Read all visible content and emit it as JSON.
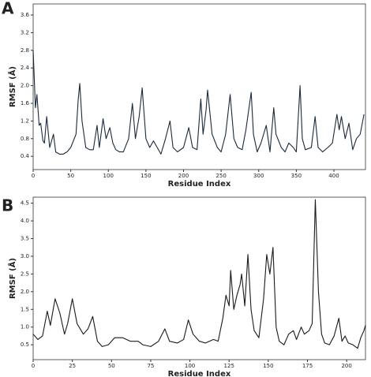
{
  "chart_data": [
    {
      "type": "line",
      "panel": "A",
      "xlabel": "Residue Index",
      "ylabel": "RMSF (Å)",
      "xlim": [
        0,
        442
      ],
      "ylim": [
        0.1,
        3.85
      ],
      "xticks": [
        0,
        50,
        100,
        150,
        200,
        250,
        300,
        350,
        400
      ],
      "yticks": [
        0.4,
        0.8,
        1.2,
        1.6,
        {
          "value": 2,
          "label": "2.0"
        },
        2.4,
        2.8,
        3.2,
        3.6
      ],
      "x": [
        0,
        3,
        5,
        8,
        10,
        13,
        15,
        18,
        22,
        27,
        30,
        35,
        40,
        45,
        50,
        57,
        60,
        62,
        65,
        70,
        75,
        80,
        85,
        88,
        93,
        97,
        102,
        106,
        110,
        115,
        120,
        127,
        132,
        136,
        141,
        145,
        150,
        155,
        160,
        165,
        170,
        176,
        182,
        186,
        192,
        200,
        207,
        212,
        218,
        223,
        226,
        230,
        232,
        238,
        245,
        250,
        256,
        262,
        267,
        272,
        278,
        283,
        290,
        293,
        298,
        303,
        310,
        315,
        320,
        323,
        330,
        335,
        340,
        346,
        350,
        355,
        358,
        362,
        370,
        375,
        379,
        385,
        392,
        398,
        404,
        407,
        410,
        415,
        420,
        425,
        430,
        435,
        440
      ],
      "series": [
        {
          "name": "RMSF",
          "color": "#1a2a3a",
          "values": [
            2.8,
            1.5,
            1.8,
            1.1,
            1.15,
            0.75,
            0.7,
            1.3,
            0.6,
            0.9,
            0.5,
            0.45,
            0.45,
            0.5,
            0.6,
            0.9,
            1.7,
            2.05,
            1.2,
            0.6,
            0.55,
            0.55,
            1.1,
            0.6,
            1.25,
            0.8,
            1.05,
            0.7,
            0.55,
            0.5,
            0.5,
            0.8,
            1.6,
            0.8,
            1.3,
            1.95,
            0.8,
            0.6,
            0.75,
            0.6,
            0.45,
            0.8,
            1.2,
            0.6,
            0.5,
            0.6,
            1.05,
            0.6,
            0.55,
            1.7,
            0.9,
            1.45,
            1.9,
            0.9,
            0.6,
            0.5,
            0.9,
            1.8,
            0.8,
            0.6,
            0.55,
            1.0,
            1.85,
            0.9,
            0.5,
            0.7,
            1.1,
            0.5,
            1.5,
            0.9,
            0.6,
            0.5,
            0.7,
            0.6,
            0.5,
            2.0,
            0.8,
            0.55,
            0.6,
            1.3,
            0.6,
            0.5,
            0.6,
            0.7,
            1.35,
            1.0,
            1.3,
            0.8,
            1.15,
            0.55,
            0.8,
            0.9,
            1.35
          ]
        }
      ]
    },
    {
      "type": "line",
      "panel": "B",
      "xlabel": "Residue Index",
      "ylabel": "RMSF (Å)",
      "xlim": [
        0,
        212
      ],
      "ylim": [
        0.08,
        4.67
      ],
      "xticks": [
        0,
        25,
        50,
        75,
        100,
        125,
        150,
        175,
        200
      ],
      "yticks": [
        0.5,
        {
          "value": 1,
          "label": "1.0"
        },
        1.5,
        {
          "value": 2,
          "label": "2.0"
        },
        2.5,
        {
          "value": 3,
          "label": "3.0"
        },
        3.5,
        {
          "value": 4,
          "label": "4.0"
        },
        4.5
      ],
      "x": [
        0,
        3,
        6,
        9,
        11,
        14,
        17,
        20,
        22,
        25,
        28,
        32,
        35,
        38,
        41,
        44,
        48,
        52,
        57,
        62,
        67,
        70,
        75,
        80,
        84,
        87,
        92,
        96,
        99,
        102,
        106,
        110,
        115,
        118,
        121,
        123,
        125,
        126,
        128,
        130,
        132,
        133,
        135,
        137,
        139,
        141,
        144,
        147,
        149,
        151,
        153,
        155,
        157,
        160,
        163,
        166,
        168,
        171,
        173,
        176,
        178,
        180,
        182,
        184,
        186,
        189,
        192,
        195,
        197,
        199,
        201,
        204,
        207,
        209,
        211,
        212
      ],
      "series": [
        {
          "name": "RMSF",
          "color": "#1a1a1a",
          "values": [
            0.8,
            0.65,
            0.75,
            1.45,
            1.05,
            1.8,
            1.4,
            0.8,
            1.1,
            1.8,
            1.1,
            0.8,
            0.95,
            1.3,
            0.6,
            0.45,
            0.5,
            0.7,
            0.7,
            0.6,
            0.6,
            0.5,
            0.45,
            0.6,
            0.95,
            0.6,
            0.55,
            0.65,
            1.2,
            0.8,
            0.6,
            0.55,
            0.65,
            0.6,
            1.25,
            1.9,
            1.6,
            2.6,
            1.5,
            1.9,
            2.2,
            2.5,
            1.6,
            3.05,
            1.5,
            0.9,
            0.7,
            1.8,
            3.05,
            2.5,
            3.25,
            1.0,
            0.6,
            0.5,
            0.8,
            0.9,
            0.65,
            1.0,
            0.8,
            0.9,
            1.1,
            4.6,
            2.0,
            0.8,
            0.55,
            0.5,
            0.75,
            1.25,
            0.6,
            0.75,
            0.55,
            0.5,
            0.4,
            0.7,
            0.9,
            1.05
          ]
        }
      ]
    }
  ]
}
